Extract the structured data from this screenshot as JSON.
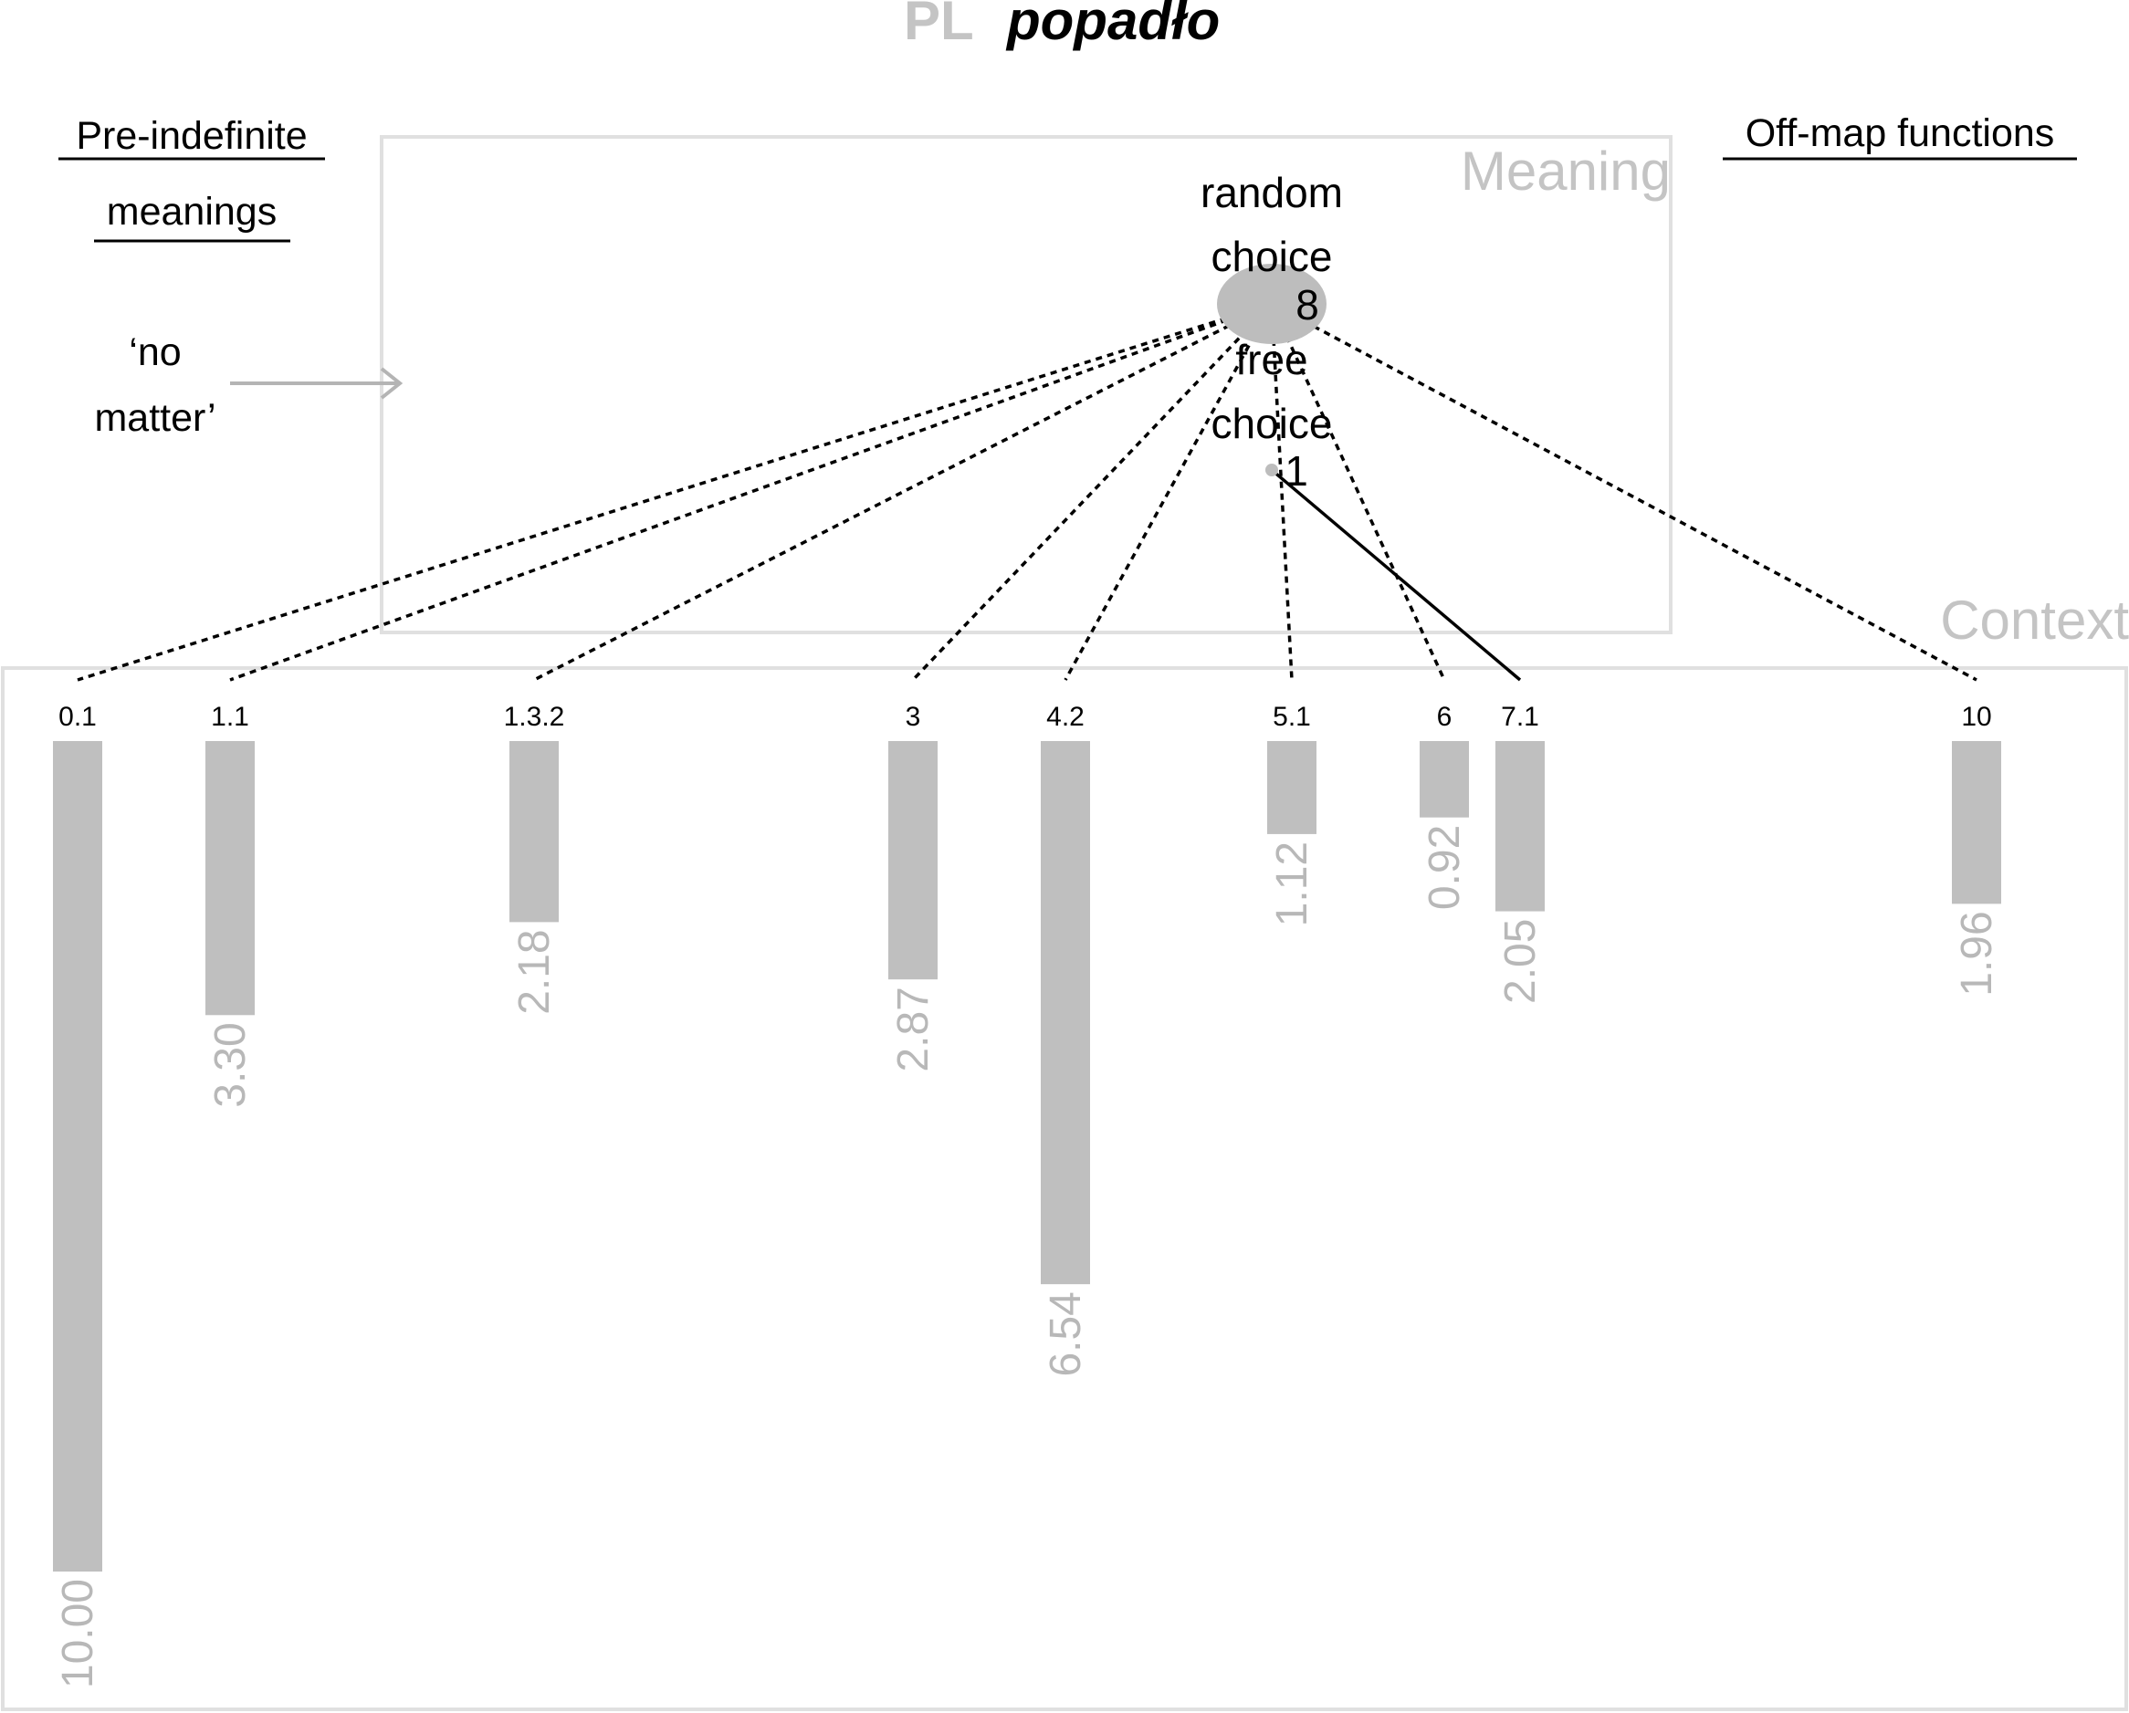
{
  "chart_data": {
    "type": "bar",
    "title": {
      "prefix": "PL",
      "word": "popadło"
    },
    "panels": {
      "meaning_label": "Meaning",
      "context_label": "Context"
    },
    "left_note": {
      "heading_line1": "Pre-indefinite",
      "heading_line2": "meanings",
      "item_line1": "‘no",
      "item_line2": "matter’"
    },
    "right_note": {
      "heading": "Off-map functions"
    },
    "meaning_nodes": [
      {
        "id": "random",
        "label_line1": "random",
        "label_line2": "choice",
        "code": "8",
        "strength": "large"
      },
      {
        "id": "free",
        "label_line1": "free",
        "label_line2": "choice",
        "code": "1",
        "strength": "small"
      }
    ],
    "categories": [
      "0.1",
      "1.1",
      "1.3.2",
      "3",
      "4.2",
      "5.1",
      "6",
      "7.1",
      "10"
    ],
    "values": [
      10.0,
      3.3,
      2.18,
      2.87,
      6.54,
      1.12,
      0.92,
      2.05,
      1.96
    ],
    "value_labels": [
      "10.00",
      "3.30",
      "2.18",
      "2.87",
      "6.54",
      "1.12",
      "0.92",
      "2.05",
      "1.96"
    ],
    "ylim": [
      0,
      10
    ],
    "links": [
      {
        "from": "random",
        "to": "0.1",
        "style": "dotted"
      },
      {
        "from": "random",
        "to": "1.1",
        "style": "dotted"
      },
      {
        "from": "random",
        "to": "1.3.2",
        "style": "dotted"
      },
      {
        "from": "random",
        "to": "3",
        "style": "dotted"
      },
      {
        "from": "random",
        "to": "4.2",
        "style": "dotted"
      },
      {
        "from": "random",
        "to": "5.1",
        "style": "dotted"
      },
      {
        "from": "random",
        "to": "6",
        "style": "dotted"
      },
      {
        "from": "random",
        "to": "10",
        "style": "dotted"
      },
      {
        "from": "free",
        "to": "7.1",
        "style": "solid"
      }
    ],
    "colors": {
      "bar": "#bfbfbf",
      "value_text": "#b8b8b8",
      "panel_border": "#e0e0e0",
      "panel_label": "#c4c4c4",
      "arrow": "#b4b4b4"
    }
  }
}
